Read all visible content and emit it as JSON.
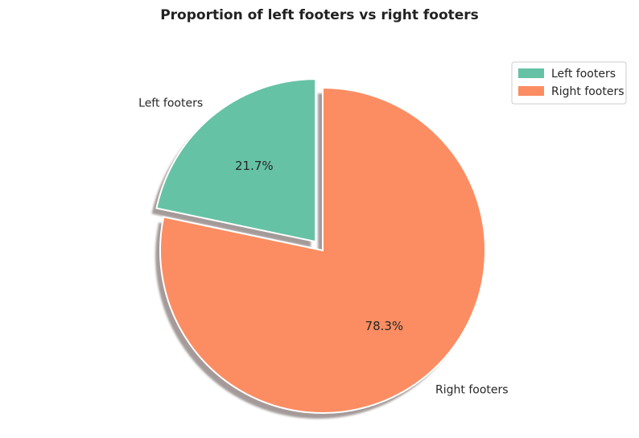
{
  "chart_data": {
    "type": "pie",
    "title": "Proportion of left footers vs right footers",
    "categories": [
      "Left footers",
      "Right footers"
    ],
    "values": [
      21.7,
      78.3
    ],
    "percent_labels": [
      "21.7%",
      "78.3%"
    ],
    "colors": [
      "#66c2a5",
      "#fc8d62"
    ],
    "exploded": [
      "Left footers"
    ],
    "shadow": true,
    "legend": {
      "placement": "top-right",
      "entries": [
        "Left footers",
        "Right footers"
      ]
    }
  }
}
